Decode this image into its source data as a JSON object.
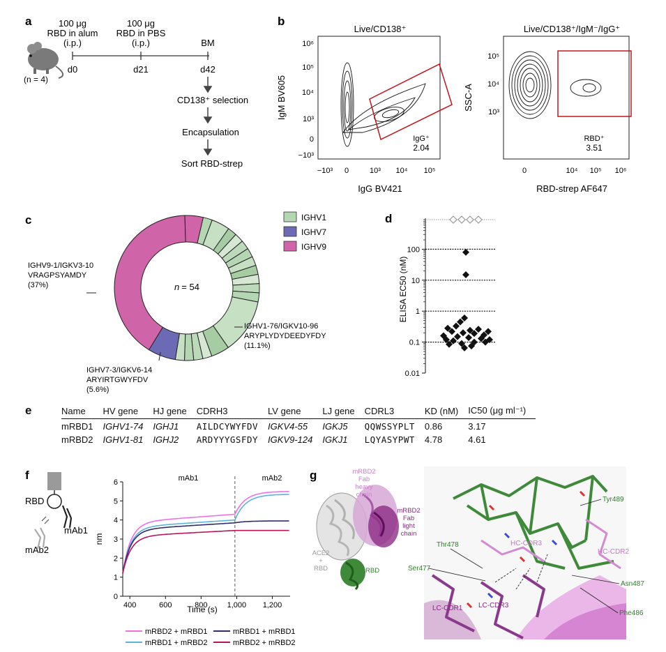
{
  "panel_a": {
    "label": "a",
    "group_size": "(n = 4)",
    "day0": "d0",
    "day21": "d21",
    "day42": "d42",
    "inj1": [
      "100 μg",
      "RBD in alum",
      "(i.p.)"
    ],
    "inj2": [
      "100 μg",
      "RBD in PBS",
      "(i.p.)"
    ],
    "bm": "BM",
    "steps": [
      "CD138⁺ selection",
      "Encapsulation",
      "Sort RBD-strep"
    ]
  },
  "panel_b": {
    "label": "b",
    "left": {
      "title": "Live/CD138⁺",
      "ylabel": "IgM BV605",
      "xlabel": "IgG BV421",
      "yticks": [
        "10⁶",
        "10⁵",
        "10⁴",
        "10³",
        "0",
        "−10³"
      ],
      "xticks": [
        "−10³",
        "0",
        "10³",
        "10⁴",
        "10⁵"
      ],
      "gate_name": "IgG⁺",
      "gate_value": "2.04"
    },
    "right": {
      "title": "Live/CD138⁺/IgM⁻/IgG⁺",
      "ylabel": "SSC-A",
      "xlabel": "RBD-strep AF647",
      "yticks": [
        "10⁵",
        "10⁴",
        "10³"
      ],
      "xticks": [
        "0",
        "10⁴",
        "10⁵",
        "10⁶"
      ],
      "gate_name": "RBD⁺",
      "gate_value": "3.51"
    }
  },
  "panel_c": {
    "label": "c",
    "center_n": "n",
    "center_val": "= 54",
    "legend": [
      {
        "name": "IGHV1",
        "color": "#b5d6b2"
      },
      {
        "name": "IGHV7",
        "color": "#6c6ab4"
      },
      {
        "name": "IGHV9",
        "color": "#cf64a8"
      }
    ],
    "callout_ighv9": [
      "IGHV9-1/IGKV3-10",
      "VRAGPSYAMDY",
      "(37%)"
    ],
    "callout_ighv1": [
      "IGHV1-76/IGKV10-96",
      "ARYPLYDYDEEDYFDY",
      "(11.1%)"
    ],
    "callout_ighv7": [
      "IGHV7-3/IGKV6-14",
      "ARYIRTGWYFDV",
      "(5.6%)"
    ],
    "segments_pct": [
      37,
      3.7,
      1.85,
      3.7,
      1.85,
      1.85,
      1.85,
      1.85,
      1.85,
      1.85,
      1.85,
      1.85,
      1.85,
      11.1,
      3.7,
      1.85,
      1.85,
      1.85,
      1.85,
      5.6
    ],
    "segment_families": [
      "IGHV9",
      "IGHV9",
      "IGHV1",
      "IGHV1",
      "IGHV1",
      "IGHV1",
      "IGHV1",
      "IGHV1",
      "IGHV1",
      "IGHV1",
      "IGHV1",
      "IGHV1",
      "IGHV1",
      "IGHV1",
      "IGHV1",
      "IGHV1",
      "IGHV1",
      "IGHV1",
      "IGHV1",
      "IGHV7"
    ]
  },
  "panel_d": {
    "label": "d",
    "chart_data": {
      "type": "scatter",
      "ylabel": "ELISA EC50 (nM)",
      "yscale": "log",
      "yticks": [
        "0.01",
        "0.1",
        "1",
        "10",
        "100"
      ],
      "ylim": [
        0.01,
        1000
      ],
      "gridlines": [
        0.1,
        1,
        10,
        100
      ],
      "not_reached_count": 4,
      "values": [
        80,
        15,
        0.6,
        0.45,
        0.33,
        0.28,
        0.26,
        0.24,
        0.22,
        0.22,
        0.2,
        0.19,
        0.17,
        0.16,
        0.15,
        0.14,
        0.13,
        0.12,
        0.12,
        0.11,
        0.1,
        0.1,
        0.09,
        0.085,
        0.075,
        0.065
      ]
    }
  },
  "panel_e": {
    "label": "e",
    "headers": [
      "Name",
      "HV gene",
      "HJ gene",
      "CDRH3",
      "LV gene",
      "LJ gene",
      "CDRL3",
      "KD (nM)",
      "IC50 (μg ml⁻¹)"
    ],
    "rows": [
      [
        "mRBD1",
        "IGHV1-74",
        "IGHJ1",
        "AILDCYWYFDV",
        "IGKV4-55",
        "IGKJ5",
        "QQWSSYPLT",
        "0.86",
        "3.17"
      ],
      [
        "mRBD2",
        "IGHV1-81",
        "IGHJ2",
        "ARDYYYGSFDY",
        "IGKV9-124",
        "IGKJ1",
        "LQYASYPWT",
        "4.78",
        "4.61"
      ]
    ]
  },
  "panel_f": {
    "label": "f",
    "schematic": {
      "rbd": "RBD",
      "mab1": "mAb1",
      "mab2": "mAb2"
    },
    "chart_data": {
      "type": "line",
      "xlabel": "Time (s)",
      "ylabel": "nm",
      "xlim": [
        360,
        1300
      ],
      "ylim": [
        0,
        6
      ],
      "xticks": [
        "400",
        "600",
        "800",
        "1,000",
        "1,200"
      ],
      "yticks": [
        "0",
        "1",
        "2",
        "3",
        "4",
        "5",
        "6"
      ],
      "phase_labels": [
        "mAb1",
        "mAb2"
      ],
      "phase_switch_x": 990,
      "series": [
        {
          "name": "mRBD2 + mRBD1",
          "color": "#f06ee6",
          "end1": 4.3,
          "end2": 5.5
        },
        {
          "name": "mRBD1 + mRBD2",
          "color": "#5ab2de",
          "end1": 4.0,
          "end2": 5.35
        },
        {
          "name": "mRBD1 + mRBD1",
          "color": "#2e2c6e",
          "end1": 3.85,
          "end2": 3.95
        },
        {
          "name": "mRBD2 + mRBD2",
          "color": "#b8135c",
          "end1": 3.45,
          "end2": 3.45
        }
      ]
    }
  },
  "panel_g": {
    "label": "g",
    "overview": {
      "heavy": [
        "mRBD2",
        "Fab",
        "heavy",
        "chain"
      ],
      "light": [
        "mRBD2",
        "Fab",
        "light",
        "chain"
      ],
      "ace2": [
        "ACE2",
        "+",
        "RBD"
      ],
      "rbd": "RBD"
    },
    "residues": [
      "Tyr489",
      "HC-CDR2",
      "HC-CDR3",
      "Thr478",
      "Ser477",
      "Asn487",
      "Phe486",
      "LC-CDR1",
      "LC-CDR3"
    ]
  }
}
